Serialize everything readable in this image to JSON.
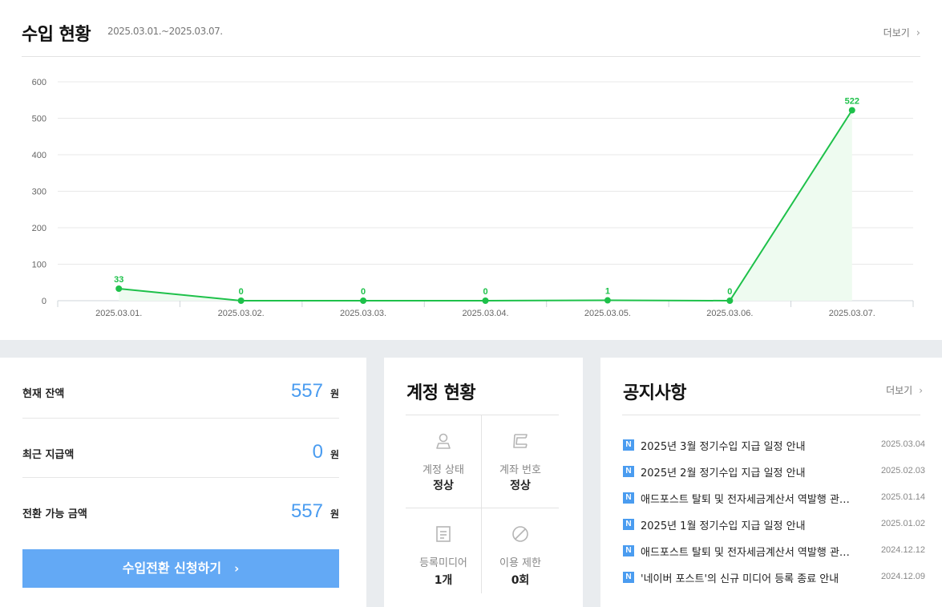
{
  "income": {
    "title": "수입 현황",
    "range": "2025.03.01.~2025.03.07.",
    "more": "더보기"
  },
  "chart_data": {
    "type": "area",
    "x": [
      "2025.03.01.",
      "2025.03.02.",
      "2025.03.03.",
      "2025.03.04.",
      "2025.03.05.",
      "2025.03.06.",
      "2025.03.07."
    ],
    "values": [
      33,
      0,
      0,
      0,
      1,
      0,
      522
    ],
    "yticks": [
      0,
      100,
      200,
      300,
      400,
      500,
      600
    ],
    "ylim": [
      0,
      600
    ],
    "grid": true,
    "line_color": "#1ec14a",
    "fill_color": "#eefbf0"
  },
  "balance": {
    "rows": [
      {
        "label": "현재 잔액",
        "value": "557",
        "unit": "원"
      },
      {
        "label": "최근 지급액",
        "value": "0",
        "unit": "원"
      },
      {
        "label": "전환 가능 금액",
        "value": "557",
        "unit": "원"
      }
    ],
    "button": "수입전환 신청하기"
  },
  "account": {
    "title": "계정 현황",
    "cells": [
      {
        "icon": "user-icon",
        "label": "계정 상태",
        "value": "정상"
      },
      {
        "icon": "bank-icon",
        "label": "계좌 번호",
        "value": "정상"
      },
      {
        "icon": "document-icon",
        "label": "등록미디어",
        "value": "1개"
      },
      {
        "icon": "ban-icon",
        "label": "이용 제한",
        "value": "0회"
      }
    ]
  },
  "notice": {
    "title": "공지사항",
    "more": "더보기",
    "badge": "N",
    "items": [
      {
        "text": "2025년 3월 정기수입 지급 일정 안내",
        "date": "2025.03.04"
      },
      {
        "text": "2025년 2월 정기수입 지급 일정 안내",
        "date": "2025.02.03"
      },
      {
        "text": "애드포스트 탈퇴 및 전자세금계산서 역발행 관련 안내",
        "date": "2025.01.14"
      },
      {
        "text": "2025년 1월 정기수입 지급 일정 안내",
        "date": "2025.01.02"
      },
      {
        "text": "애드포스트 탈퇴 및 전자세금계산서 역발행 관련 안내",
        "date": "2024.12.12"
      },
      {
        "text": "'네이버 포스트'의 신규 미디어 등록 종료 안내",
        "date": "2024.12.09"
      }
    ]
  },
  "colors": {
    "accent": "#4a9cf0",
    "button": "#63a9f5",
    "chart_line": "#1ec14a"
  }
}
